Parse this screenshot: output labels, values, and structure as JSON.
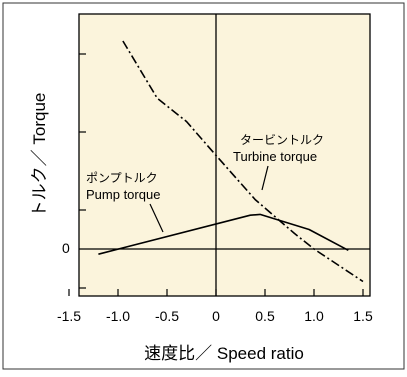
{
  "chart_data": {
    "type": "line",
    "xlabel": "速度比／ Speed ratio",
    "ylabel": "トルク／ Torque",
    "xlim": [
      -1.5,
      1.5
    ],
    "x_ticks": [
      "-1.5",
      "-1.0",
      "-0.5",
      "0",
      "0.5",
      "1.0",
      "1.5"
    ],
    "y_zero_label": "0",
    "grid": false,
    "colors": {
      "background": "#fbf4dc",
      "frame": "#000000",
      "series": "#000000"
    },
    "series": [
      {
        "name": "ポンプトルク Pump torque",
        "style": "solid",
        "x": [
          -1.2,
          0.35,
          0.45,
          0.95,
          1.35
        ],
        "y": [
          -0.2,
          1.3,
          1.33,
          0.75,
          -0.05
        ]
      },
      {
        "name": "タービントルク Turbine torque",
        "style": "dashdot",
        "x": [
          -0.95,
          -0.6,
          -0.3,
          0.0,
          0.4,
          0.8,
          1.0,
          1.2,
          1.5
        ],
        "y": [
          8.0,
          5.8,
          4.9,
          3.6,
          1.9,
          0.6,
          0.0,
          -0.5,
          -1.25
        ]
      }
    ],
    "annotations": [
      {
        "text_ja": "ポンプトルク",
        "text_en": "Pump torque"
      },
      {
        "text_ja": "タービントルク",
        "text_en": "Turbine torque"
      }
    ]
  }
}
